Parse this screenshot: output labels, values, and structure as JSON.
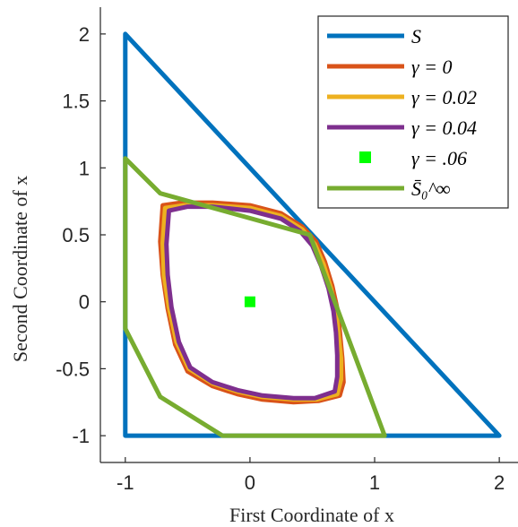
{
  "chart_data": {
    "type": "line",
    "xlabel": "First Coordinate of x",
    "ylabel": "Second Coordinate of x",
    "xlim": [
      -1.2,
      2.15
    ],
    "ylim": [
      -1.2,
      2.2
    ],
    "xticks": [
      -1,
      0,
      1,
      2
    ],
    "xtick_labels": [
      "-1",
      "0",
      "1",
      "2"
    ],
    "yticks": [
      -1,
      -0.5,
      0,
      0.5,
      1,
      1.5,
      2
    ],
    "ytick_labels": [
      "-1",
      "-0.5",
      "0",
      "0.5",
      "1",
      "1.5",
      "2"
    ],
    "grid": false,
    "legend_position": "top-right",
    "series": [
      {
        "name": "S",
        "color": "#0072bd",
        "kind": "line",
        "points": [
          [
            -1,
            2
          ],
          [
            -1,
            -1
          ],
          [
            2,
            -1
          ],
          [
            -1,
            2
          ]
        ]
      },
      {
        "name": "γ = 0",
        "color": "#d95319",
        "kind": "line",
        "points": [
          [
            -0.7,
            0.72
          ],
          [
            -0.55,
            0.74
          ],
          [
            -0.3,
            0.74
          ],
          [
            0.0,
            0.72
          ],
          [
            0.25,
            0.66
          ],
          [
            0.42,
            0.56
          ],
          [
            0.53,
            0.45
          ],
          [
            0.6,
            0.3
          ],
          [
            0.66,
            0.12
          ],
          [
            0.7,
            -0.05
          ],
          [
            0.72,
            -0.22
          ],
          [
            0.74,
            -0.42
          ],
          [
            0.75,
            -0.6
          ],
          [
            0.72,
            -0.7
          ],
          [
            0.55,
            -0.74
          ],
          [
            0.35,
            -0.75
          ],
          [
            0.1,
            -0.73
          ],
          [
            -0.1,
            -0.69
          ],
          [
            -0.3,
            -0.63
          ],
          [
            -0.5,
            -0.52
          ],
          [
            -0.6,
            -0.32
          ],
          [
            -0.66,
            -0.05
          ],
          [
            -0.7,
            0.2
          ],
          [
            -0.72,
            0.45
          ],
          [
            -0.7,
            0.72
          ]
        ]
      },
      {
        "name": "γ = 0.02",
        "color": "#edb120",
        "kind": "line",
        "points": [
          [
            -0.68,
            0.7
          ],
          [
            -0.53,
            0.72
          ],
          [
            -0.3,
            0.72
          ],
          [
            0.0,
            0.7
          ],
          [
            0.25,
            0.64
          ],
          [
            0.42,
            0.54
          ],
          [
            0.52,
            0.43
          ],
          [
            0.59,
            0.28
          ],
          [
            0.65,
            0.1
          ],
          [
            0.69,
            -0.07
          ],
          [
            0.71,
            -0.24
          ],
          [
            0.73,
            -0.42
          ],
          [
            0.73,
            -0.58
          ],
          [
            0.7,
            -0.69
          ],
          [
            0.53,
            -0.73
          ],
          [
            0.35,
            -0.73
          ],
          [
            0.1,
            -0.71
          ],
          [
            -0.1,
            -0.67
          ],
          [
            -0.3,
            -0.61
          ],
          [
            -0.49,
            -0.5
          ],
          [
            -0.59,
            -0.3
          ],
          [
            -0.65,
            -0.04
          ],
          [
            -0.69,
            0.2
          ],
          [
            -0.7,
            0.44
          ],
          [
            -0.68,
            0.7
          ]
        ]
      },
      {
        "name": "γ = 0.04",
        "color": "#7e2f8e",
        "kind": "line",
        "points": [
          [
            -0.65,
            0.68
          ],
          [
            -0.5,
            0.71
          ],
          [
            -0.3,
            0.71
          ],
          [
            0.0,
            0.68
          ],
          [
            0.25,
            0.62
          ],
          [
            0.4,
            0.53
          ],
          [
            0.5,
            0.42
          ],
          [
            0.57,
            0.27
          ],
          [
            0.63,
            0.1
          ],
          [
            0.67,
            -0.07
          ],
          [
            0.69,
            -0.23
          ],
          [
            0.7,
            -0.4
          ],
          [
            0.7,
            -0.56
          ],
          [
            0.68,
            -0.67
          ],
          [
            0.52,
            -0.72
          ],
          [
            0.35,
            -0.72
          ],
          [
            0.1,
            -0.7
          ],
          [
            -0.1,
            -0.66
          ],
          [
            -0.3,
            -0.6
          ],
          [
            -0.48,
            -0.49
          ],
          [
            -0.57,
            -0.3
          ],
          [
            -0.63,
            -0.04
          ],
          [
            -0.66,
            0.2
          ],
          [
            -0.67,
            0.43
          ],
          [
            -0.65,
            0.68
          ]
        ]
      },
      {
        "name": "γ = .06",
        "color": "#00ff00",
        "kind": "marker",
        "points": [
          [
            0,
            0
          ]
        ]
      },
      {
        "name": "S̄₀^∞",
        "color": "#77ac30",
        "kind": "line",
        "points": [
          [
            -1,
            1.07
          ],
          [
            -0.72,
            0.81
          ],
          [
            0.48,
            0.5
          ],
          [
            1.08,
            -1
          ],
          [
            -0.22,
            -1
          ],
          [
            -0.72,
            -0.71
          ],
          [
            -1,
            -0.2
          ],
          [
            -1,
            1.07
          ]
        ]
      }
    ]
  },
  "legend": {
    "items": [
      {
        "label": "S",
        "color": "#0072bd",
        "kind": "line"
      },
      {
        "label": "γ = 0",
        "color": "#d95319",
        "kind": "line"
      },
      {
        "label": "γ = 0.02",
        "color": "#edb120",
        "kind": "line"
      },
      {
        "label": "γ = 0.04",
        "color": "#7e2f8e",
        "kind": "line"
      },
      {
        "label": "γ = .06",
        "color": "#00ff00",
        "kind": "marker"
      },
      {
        "label": "S̄₀^∞",
        "color": "#77ac30",
        "kind": "line"
      }
    ]
  }
}
